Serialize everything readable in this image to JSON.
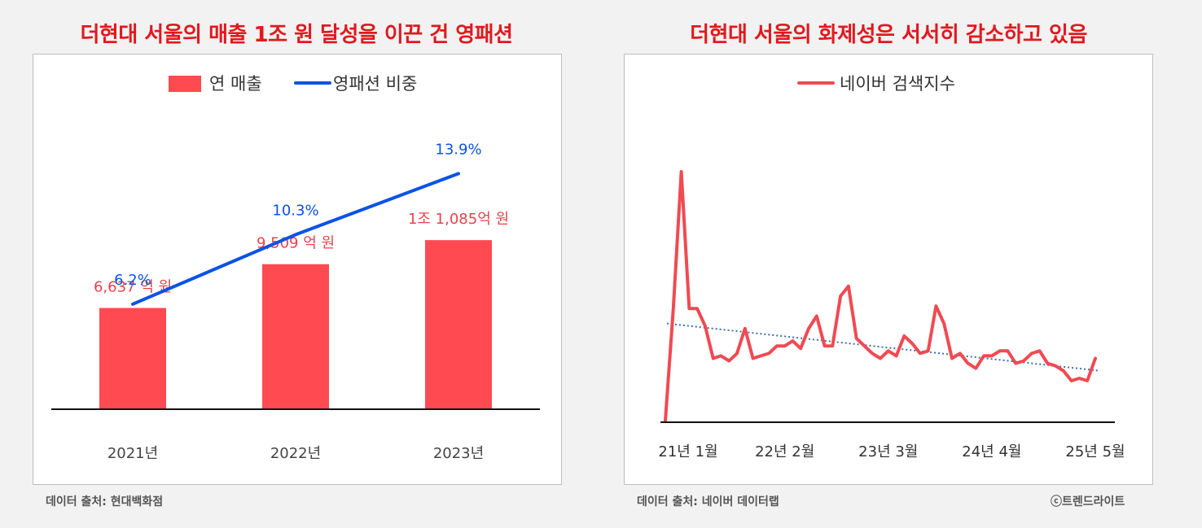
{
  "left": {
    "title": "더현대 서울의 매출 1조 원 달성을 이끈 건 영패션",
    "source": "데이터 출처: 현대백화점",
    "colors": {
      "bar": "#ff4a52",
      "line": "#0a52e6",
      "label_red": "#e8434a"
    }
  },
  "right": {
    "title": "더현대 서울의 화제성은 서서히 감소하고 있음",
    "source": "데이터 출처: 네이버 데이터랩",
    "copyright": "ⓒ트렌드라이트",
    "colors": {
      "line": "#f04a52",
      "trend": "#3f6fb5"
    }
  },
  "chart_data": [
    {
      "type": "bar",
      "title": "더현대 서울의 매출 1조 원 달성을 이끈 건 영패션",
      "categories": [
        "2021년",
        "2022년",
        "2023년"
      ],
      "legend": [
        "연 매출",
        "영패션 비중"
      ],
      "legend_position": "top",
      "series": [
        {
          "name": "연 매출",
          "type": "bar",
          "values": [
            6637,
            9509,
            11085
          ],
          "unit": "억 원",
          "data_labels": [
            "6,637 억 원",
            "9,509 억 원",
            "1조 1,085억 원"
          ]
        },
        {
          "name": "영패션 비중",
          "type": "line",
          "values": [
            6.2,
            10.3,
            13.9
          ],
          "unit": "%",
          "data_labels": [
            "6.2%",
            "10.3%",
            "13.9%"
          ]
        }
      ],
      "ylim_bar": [
        0,
        20000
      ],
      "ylim_line": [
        0,
        18
      ],
      "grid": false
    },
    {
      "type": "line",
      "title": "더현대 서울의 화제성은 서서히 감소하고 있음",
      "legend": [
        "네이버 검색지수"
      ],
      "legend_position": "top",
      "x_tick_labels": [
        "21년 1월",
        "22년 2월",
        "23년 3월",
        "24년 4월",
        "25년 5월"
      ],
      "x_tick_indices": [
        2,
        15,
        28,
        41,
        54
      ],
      "series": [
        {
          "name": "네이버 검색지수",
          "values": [
            0,
            45,
            100,
            45,
            45,
            38,
            25,
            26,
            24,
            27,
            37,
            25,
            26,
            27,
            30,
            30,
            32,
            29,
            37,
            42,
            30,
            30,
            50,
            54,
            33,
            30,
            27,
            25,
            28,
            26,
            34,
            31,
            27,
            28,
            46,
            39,
            25,
            27,
            23,
            21,
            26,
            26,
            28,
            28,
            23,
            24,
            27,
            28,
            23,
            22,
            20,
            16,
            17,
            16,
            25
          ]
        }
      ],
      "trend_line": {
        "style": "dotted",
        "start": 39,
        "end": 20
      },
      "ylim": [
        0,
        100
      ],
      "grid": false
    }
  ]
}
